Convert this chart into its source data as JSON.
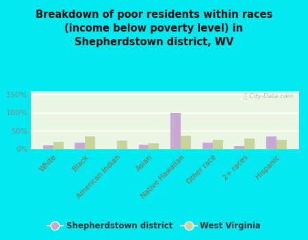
{
  "title": "Breakdown of poor residents within races\n(income below poverty level) in\nShepherdstown district, WV",
  "categories": [
    "White",
    "Black",
    "American Indian",
    "Asian",
    "Native Hawaiian",
    "Other race",
    "2+ races",
    "Hispanic"
  ],
  "shepherdstown_values": [
    10,
    18,
    0,
    11,
    100,
    17,
    7,
    35
  ],
  "wv_values": [
    20,
    35,
    22,
    16,
    36,
    25,
    28,
    24
  ],
  "shepherdstown_color": "#c9a8d4",
  "wv_color": "#c8d49a",
  "background_outer": "#00e8f0",
  "background_inner": "#eaf5e4",
  "ylabel_ticks": [
    "0%",
    "50%",
    "100%",
    "150%"
  ],
  "ytick_values": [
    0,
    50,
    100,
    150
  ],
  "ylim": [
    0,
    160
  ],
  "watermark": "ⓘ City-Data.com",
  "legend_labels": [
    "Shepherdstown district",
    "West Virginia"
  ],
  "bar_width": 0.32,
  "title_fontsize": 10.5,
  "tick_label_color": "#996633",
  "ytick_color": "#888888"
}
